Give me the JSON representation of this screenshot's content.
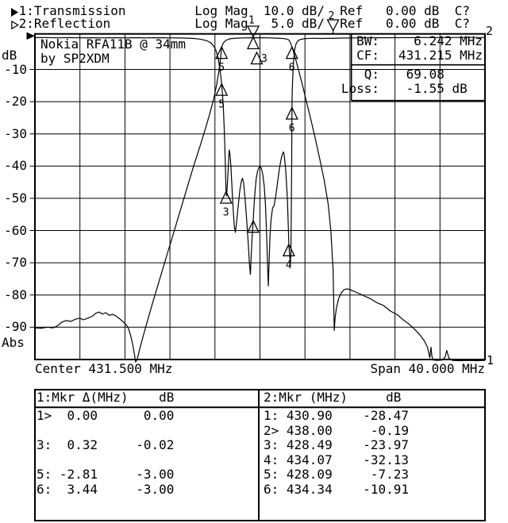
{
  "header": {
    "line1_text": " 1:Transmission         Log Mag  10.0 dB/  Ref   0.00 dB  C?",
    "line2_text": " 2:Reflection           Log Mag   5.0 dB/  Ref   0.00 dB  C?",
    "trace1_arrow": "filled-right-triangle",
    "trace2_arrow": "hollow-right-triangle"
  },
  "plot": {
    "annotation_line1": "Nokia RFA11B @ 34mm",
    "annotation_line2": "by SP2XDM",
    "y_axis_unit": "dB",
    "y_ticks": [
      "-10",
      "-20",
      "-30",
      "-40",
      "-50",
      "-60",
      "-70",
      "-80",
      "-90"
    ],
    "y_bottom_label": "Abs",
    "x_center_label": "Center 431.500 MHz",
    "x_span_label": "Span 40.000 MHz",
    "corner_ref_top": "2",
    "corner_ref_bottom": "1",
    "readout_rows": [
      {
        "label": "BW:",
        "value": "  6.242 MHz"
      },
      {
        "label": "CF:",
        "value": "431.215 MHz"
      },
      {
        "label": "Q:",
        "value": " 69.08     "
      },
      {
        "label": "Loss:",
        "value": " -1.55 dB  "
      }
    ]
  },
  "marker_table_1": {
    "header": "1:Mkr Δ(MHz)    dB",
    "rows": [
      {
        "slot": 0,
        "text": "1>  0.00      0.00"
      },
      {
        "slot": 2,
        "text": "3:  0.32     -0.02"
      },
      {
        "slot": 4,
        "text": "5: -2.81     -3.00"
      },
      {
        "slot": 5,
        "text": "6:  3.44     -3.00"
      }
    ]
  },
  "marker_table_2": {
    "header": "2:Mkr (MHz)     dB",
    "rows": [
      {
        "slot": 0,
        "text": "1: 430.90    -28.47"
      },
      {
        "slot": 1,
        "text": "2> 438.00     -0.19"
      },
      {
        "slot": 2,
        "text": "3: 428.49    -23.97"
      },
      {
        "slot": 3,
        "text": "4: 434.07    -32.13"
      },
      {
        "slot": 4,
        "text": "5: 428.09     -7.23"
      },
      {
        "slot": 5,
        "text": "6: 434.34    -10.91"
      }
    ]
  },
  "chart_data": {
    "type": "line",
    "title": "Nokia RFA11B @ 34mm by SP2XDM",
    "x_axis": {
      "unit": "MHz",
      "center": 431.5,
      "span": 40.0,
      "min": 411.5,
      "max": 451.5,
      "divisions": 10,
      "grid": true
    },
    "y_axis": {
      "unit": "dB",
      "reference_db": 0.0,
      "tick_labels": [
        -10,
        -20,
        -30,
        -40,
        -50,
        -60,
        -70,
        -80,
        -90
      ],
      "bottom_label": "Abs",
      "grid": true
    },
    "series": [
      {
        "name": "Transmission",
        "db_per_div": 10,
        "points": [
          [
            411.5,
            -90.2
          ],
          [
            412.1,
            -90.3
          ],
          [
            412.6,
            -90.0
          ],
          [
            413.1,
            -90.2
          ],
          [
            413.5,
            -89.6
          ],
          [
            413.9,
            -88.4
          ],
          [
            414.3,
            -87.9
          ],
          [
            414.7,
            -88.2
          ],
          [
            415.1,
            -87.5
          ],
          [
            415.5,
            -87.2
          ],
          [
            415.8,
            -87.7
          ],
          [
            416.2,
            -87.2
          ],
          [
            416.6,
            -86.6
          ],
          [
            416.9,
            -85.7
          ],
          [
            417.2,
            -85.3
          ],
          [
            417.5,
            -85.9
          ],
          [
            417.8,
            -85.5
          ],
          [
            418.1,
            -86.3
          ],
          [
            418.4,
            -86.0
          ],
          [
            418.7,
            -86.5
          ],
          [
            419.0,
            -87.3
          ],
          [
            419.3,
            -88.2
          ],
          [
            419.6,
            -89.2
          ],
          [
            419.8,
            -90.3
          ],
          [
            420.0,
            -92.5
          ],
          [
            420.2,
            -95.5
          ],
          [
            420.35,
            -98.5
          ],
          [
            420.45,
            -100.8
          ],
          [
            420.6,
            -99.8
          ],
          [
            420.8,
            -97.0
          ],
          [
            421.1,
            -93.0
          ],
          [
            421.5,
            -88.0
          ],
          [
            422.0,
            -82.0
          ],
          [
            422.6,
            -75.0
          ],
          [
            423.2,
            -68.0
          ],
          [
            423.8,
            -61.0
          ],
          [
            424.4,
            -54.0
          ],
          [
            425.0,
            -47.0
          ],
          [
            425.6,
            -40.0
          ],
          [
            426.2,
            -33.5
          ],
          [
            426.7,
            -27.8
          ],
          [
            427.1,
            -23.0
          ],
          [
            427.4,
            -19.0
          ],
          [
            427.65,
            -14.8
          ],
          [
            427.85,
            -10.5
          ],
          [
            428.0,
            -6.6
          ],
          [
            428.09,
            -3.0
          ],
          [
            428.25,
            -1.8
          ],
          [
            428.45,
            -1.0
          ],
          [
            428.8,
            -0.5
          ],
          [
            429.4,
            -0.3
          ],
          [
            430.2,
            -0.2
          ],
          [
            431.2,
            -0.15
          ],
          [
            432.2,
            -0.2
          ],
          [
            433.1,
            -0.3
          ],
          [
            433.7,
            -0.45
          ],
          [
            434.05,
            -0.8
          ],
          [
            434.2,
            -1.6
          ],
          [
            434.34,
            -3.0
          ],
          [
            434.5,
            -4.8
          ],
          [
            434.7,
            -7.2
          ],
          [
            434.95,
            -10.4
          ],
          [
            435.25,
            -14.5
          ],
          [
            435.6,
            -19.5
          ],
          [
            436.0,
            -25.2
          ],
          [
            436.4,
            -31.2
          ],
          [
            436.8,
            -37.5
          ],
          [
            437.2,
            -44.2
          ],
          [
            437.55,
            -51.5
          ],
          [
            437.8,
            -60.0
          ],
          [
            438.0,
            -72.0
          ],
          [
            438.1,
            -91.0
          ],
          [
            438.18,
            -87.0
          ],
          [
            438.3,
            -84.0
          ],
          [
            438.5,
            -81.0
          ],
          [
            438.75,
            -79.2
          ],
          [
            439.0,
            -78.3
          ],
          [
            439.25,
            -78.1
          ],
          [
            439.6,
            -78.5
          ],
          [
            440.1,
            -79.2
          ],
          [
            440.7,
            -80.2
          ],
          [
            441.3,
            -81.1
          ],
          [
            441.9,
            -82.4
          ],
          [
            442.5,
            -83.3
          ],
          [
            443.1,
            -85.0
          ],
          [
            443.7,
            -86.1
          ],
          [
            444.2,
            -87.6
          ],
          [
            444.7,
            -88.9
          ],
          [
            445.2,
            -90.5
          ],
          [
            445.7,
            -92.3
          ],
          [
            446.1,
            -94.2
          ],
          [
            446.4,
            -96.3
          ],
          [
            446.6,
            -99.5
          ],
          [
            446.7,
            -96.2
          ],
          [
            446.78,
            -99.0
          ],
          [
            446.9,
            -100.2
          ],
          [
            447.3,
            -100.3
          ],
          [
            447.7,
            -100.2
          ],
          [
            447.95,
            -99.3
          ],
          [
            448.1,
            -97.2
          ],
          [
            448.3,
            -99.6
          ],
          [
            448.6,
            -100.3
          ],
          [
            449.2,
            -100.4
          ],
          [
            450.0,
            -100.3
          ],
          [
            450.8,
            -100.4
          ],
          [
            451.5,
            -100.3
          ]
        ]
      },
      {
        "name": "Reflection",
        "db_per_div": 5,
        "points": [
          [
            411.5,
            -0.06
          ],
          [
            412.5,
            -0.05
          ],
          [
            413.5,
            -0.1
          ],
          [
            414.5,
            -0.06
          ],
          [
            415.5,
            -0.1
          ],
          [
            416.5,
            -0.07
          ],
          [
            417.5,
            -0.1
          ],
          [
            418.5,
            -0.07
          ],
          [
            419.5,
            -0.1
          ],
          [
            420.5,
            -0.08
          ],
          [
            421.5,
            -0.1
          ],
          [
            422.5,
            -0.08
          ],
          [
            423.5,
            -0.1
          ],
          [
            424.5,
            -0.12
          ],
          [
            425.5,
            -0.18
          ],
          [
            426.2,
            -0.3
          ],
          [
            426.8,
            -0.55
          ],
          [
            427.15,
            -0.9
          ],
          [
            427.4,
            -1.4
          ],
          [
            427.6,
            -2.1
          ],
          [
            427.78,
            -3.2
          ],
          [
            427.92,
            -4.7
          ],
          [
            428.02,
            -6.1
          ],
          [
            428.09,
            -7.23
          ],
          [
            428.18,
            -9.0
          ],
          [
            428.26,
            -11.5
          ],
          [
            428.33,
            -14.6
          ],
          [
            428.4,
            -18.4
          ],
          [
            428.49,
            -23.97
          ],
          [
            428.54,
            -24.6
          ],
          [
            428.62,
            -22.3
          ],
          [
            428.7,
            -19.6
          ],
          [
            428.76,
            -17.5
          ],
          [
            428.83,
            -18.1
          ],
          [
            428.92,
            -20.0
          ],
          [
            429.02,
            -23.4
          ],
          [
            429.12,
            -26.8
          ],
          [
            429.22,
            -29.3
          ],
          [
            429.31,
            -30.3
          ],
          [
            429.42,
            -28.8
          ],
          [
            429.56,
            -26.3
          ],
          [
            429.7,
            -23.9
          ],
          [
            429.84,
            -22.4
          ],
          [
            429.94,
            -21.9
          ],
          [
            430.05,
            -22.6
          ],
          [
            430.17,
            -24.8
          ],
          [
            430.3,
            -27.9
          ],
          [
            430.44,
            -31.5
          ],
          [
            430.57,
            -35.2
          ],
          [
            430.65,
            -36.8
          ],
          [
            430.73,
            -33.6
          ],
          [
            430.82,
            -30.4
          ],
          [
            430.9,
            -28.47
          ],
          [
            430.98,
            -26.0
          ],
          [
            431.07,
            -23.8
          ],
          [
            431.17,
            -21.9
          ],
          [
            431.3,
            -20.7
          ],
          [
            431.45,
            -20.1
          ],
          [
            431.6,
            -20.2
          ],
          [
            431.74,
            -21.2
          ],
          [
            431.88,
            -23.1
          ],
          [
            431.99,
            -25.9
          ],
          [
            432.08,
            -30.0
          ],
          [
            432.16,
            -34.5
          ],
          [
            432.24,
            -38.6
          ],
          [
            432.31,
            -35.0
          ],
          [
            432.39,
            -31.0
          ],
          [
            432.49,
            -28.3
          ],
          [
            432.62,
            -26.5
          ],
          [
            432.76,
            -26.1
          ],
          [
            432.92,
            -24.5
          ],
          [
            433.07,
            -22.4
          ],
          [
            433.22,
            -20.5
          ],
          [
            433.37,
            -19.0
          ],
          [
            433.5,
            -18.1
          ],
          [
            433.58,
            -17.8
          ],
          [
            433.66,
            -18.3
          ],
          [
            433.8,
            -20.9
          ],
          [
            433.94,
            -25.1
          ],
          [
            434.07,
            -32.13
          ],
          [
            434.14,
            -33.8
          ],
          [
            434.2,
            -35.3
          ],
          [
            434.25,
            -33.5
          ],
          [
            434.29,
            -27.0
          ],
          [
            434.32,
            -19.0
          ],
          [
            434.34,
            -10.91
          ],
          [
            434.38,
            -7.8
          ],
          [
            434.44,
            -5.2
          ],
          [
            434.51,
            -3.1
          ],
          [
            434.6,
            -1.8
          ],
          [
            434.72,
            -1.0
          ],
          [
            434.88,
            -0.55
          ],
          [
            435.1,
            -0.35
          ],
          [
            435.5,
            -0.22
          ],
          [
            436.2,
            -0.16
          ],
          [
            437.0,
            -0.2
          ],
          [
            437.6,
            -0.16
          ],
          [
            438.0,
            -0.19
          ],
          [
            438.6,
            -0.14
          ],
          [
            439.6,
            -0.11
          ],
          [
            441.0,
            -0.09
          ],
          [
            443.0,
            -0.07
          ],
          [
            445.5,
            -0.06
          ],
          [
            448.0,
            -0.05
          ],
          [
            451.5,
            -0.04
          ]
        ]
      }
    ],
    "markers": [
      {
        "n": "1",
        "trace": 1,
        "mhz": 430.9,
        "db": 0.0,
        "kind": "down-top",
        "digit": "1"
      },
      {
        "n": "1",
        "trace": 1,
        "mhz": 430.9,
        "db": 0.0,
        "kind": "up",
        "digit": ""
      },
      {
        "n": "3",
        "trace": 1,
        "mhz": 431.22,
        "db": -0.02,
        "kind": "up-offset",
        "digit": "3"
      },
      {
        "n": "5",
        "trace": 1,
        "mhz": 428.09,
        "db": -3.0,
        "kind": "up",
        "digit": "5"
      },
      {
        "n": "6",
        "trace": 1,
        "mhz": 434.34,
        "db": -3.0,
        "kind": "up",
        "digit": "6"
      },
      {
        "n": "1",
        "trace": 2,
        "mhz": 430.9,
        "db": -28.47,
        "kind": "up",
        "digit": ""
      },
      {
        "n": "2",
        "trace": 2,
        "mhz": 438.0,
        "db": -0.19,
        "kind": "down-top",
        "digit": "2"
      },
      {
        "n": "3",
        "trace": 2,
        "mhz": 428.49,
        "db": -23.97,
        "kind": "up",
        "digit": "3"
      },
      {
        "n": "4",
        "trace": 2,
        "mhz": 434.07,
        "db": -32.13,
        "kind": "up",
        "digit": "4"
      },
      {
        "n": "5",
        "trace": 2,
        "mhz": 428.09,
        "db": -7.23,
        "kind": "up",
        "digit": "5"
      },
      {
        "n": "6",
        "trace": 2,
        "mhz": 434.34,
        "db": -10.91,
        "kind": "up",
        "digit": "6"
      }
    ],
    "readouts": {
      "BW_MHz": 6.242,
      "CF_MHz": 431.215,
      "Q": 69.08,
      "Loss_dB": -1.55
    },
    "legend_position": "none"
  },
  "colors": {
    "foreground": "#000000",
    "background": "#ffffff"
  }
}
